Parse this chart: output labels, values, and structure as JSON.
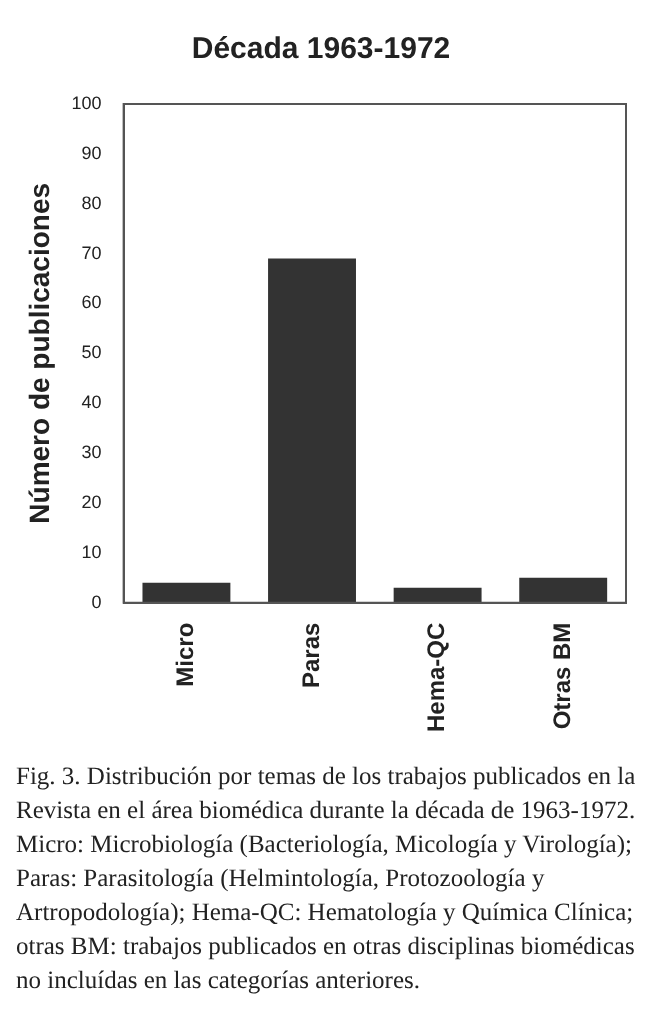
{
  "chart_data": {
    "type": "bar",
    "title": "Década 1963-1972",
    "ylabel": "Número de publicaciones",
    "categories": [
      "Micro",
      "Paras",
      "Hema-QC",
      "Otras BM"
    ],
    "values": [
      4,
      69,
      3,
      5
    ],
    "color": "#333333",
    "ylim": [
      0,
      100
    ],
    "yticks": [
      0,
      10,
      20,
      30,
      40,
      50,
      60,
      70,
      80,
      90,
      100
    ],
    "grid": false,
    "legend": false,
    "annotations": [
      "Fig. 3. Distribución por temas de los trabajos publicados en la Revista en el área biomédica durante la década de 1963-1972. Micro: Microbiología (Bacteriología, Micología y Virología); Paras: Parasitología (Helmintología, Protozoología y Artropodología); Hema-QC: Hematología y Química Clínica; otras BM: trabajos publicados en otras disciplinas biomédicas no incluídas en las categorías anteriores."
    ]
  }
}
